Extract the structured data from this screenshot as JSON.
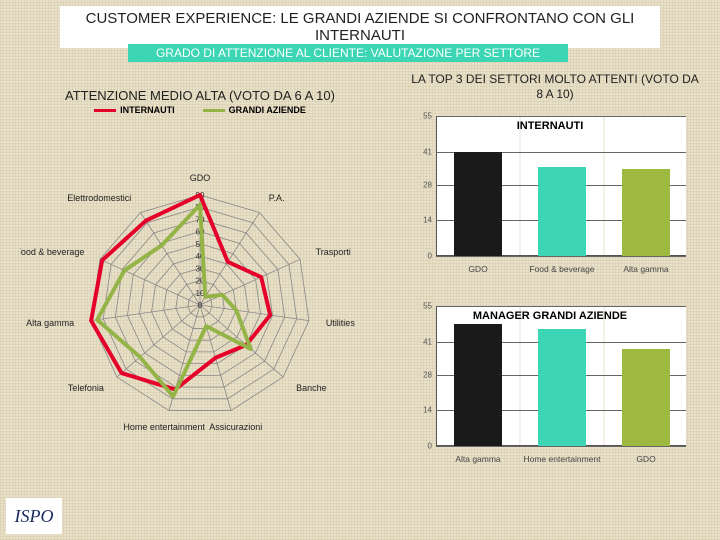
{
  "title": "CUSTOMER EXPERIENCE: LE GRANDI AZIENDE SI CONFRONTANO CON GLI INTERNAUTI",
  "subtitle": "GRADO DI ATTENZIONE  AL CLIENTE: VALUTAZIONE PER SETTORE",
  "subtitle_bg": "#3dd6b4",
  "radar": {
    "title": "ATTENZIONE MEDIO ALTA (VOTO DA 6 A 10)",
    "legend": [
      {
        "label": "INTERNAUTI",
        "color": "#e4002b"
      },
      {
        "label": "GRANDI AZIENDE",
        "color": "#94b447"
      }
    ],
    "categories": [
      "GDO",
      "P.A.",
      "Trasporti",
      "Utilities",
      "Banche",
      "Assicurazioni",
      "Home entertainment",
      "Telefonia",
      "Alta gamma",
      "Food & beverage",
      "Elettrodomestici"
    ],
    "max": 90,
    "rings": [
      0,
      10,
      20,
      30,
      40,
      50,
      60,
      70,
      80,
      90
    ],
    "grid_color": "#888888",
    "series": [
      {
        "name": "INTERNAUTI",
        "color": "#e4002b",
        "width": 4,
        "values": [
          90,
          42,
          55,
          58,
          50,
          45,
          72,
          85,
          90,
          88,
          82
        ]
      },
      {
        "name": "GRANDI AZIENDE",
        "color": "#94b447",
        "width": 4,
        "values": [
          82,
          8,
          20,
          30,
          55,
          18,
          78,
          65,
          85,
          68,
          58
        ]
      }
    ],
    "label_fontsize": 9
  },
  "right_title": "LA TOP 3 DEI SETTORI MOLTO ATTENTI (VOTO DA  8 A 10)",
  "bar_charts": [
    {
      "title": "INTERNAUTI",
      "ymax": 55,
      "yticks": [
        0,
        14,
        28,
        41,
        55
      ],
      "bars": [
        {
          "label": "GDO",
          "value": 41,
          "color": "#1a1a1a"
        },
        {
          "label": "Food & beverage",
          "value": 35,
          "color": "#3dd6b4"
        },
        {
          "label": "Alta gamma",
          "value": 34,
          "color": "#9db93f"
        }
      ]
    },
    {
      "title": "MANAGER GRANDI AZIENDE",
      "ymax": 55,
      "yticks": [
        0,
        14,
        28,
        41,
        55
      ],
      "bars": [
        {
          "label": "Alta gamma",
          "value": 48,
          "color": "#1a1a1a"
        },
        {
          "label": "Home entertainment",
          "value": 46,
          "color": "#3dd6b4"
        },
        {
          "label": "GDO",
          "value": 38,
          "color": "#9db93f"
        }
      ]
    }
  ],
  "logo_text": "ISPO"
}
